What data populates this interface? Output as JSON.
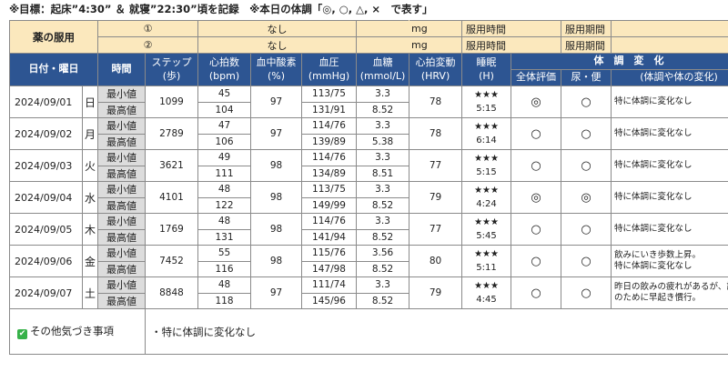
{
  "goal_text": "※目標：起床”4:30” ＆ 就寝”22:30”頃を記録　※本日の体調「◎, ○, △, ×　で表す」",
  "medication": {
    "label": "薬の服用",
    "rows": [
      {
        "num": "①",
        "name": "なし",
        "unit": "mg",
        "time_label": "服用時間",
        "period_label": "服用期間"
      },
      {
        "num": "②",
        "name": "なし",
        "unit": "mg",
        "time_label": "服用時間",
        "period_label": "服用期間"
      }
    ]
  },
  "headers": {
    "date": "日付・曜日",
    "time": "時間",
    "steps": [
      "ステップ",
      "(歩)"
    ],
    "heart": [
      "心拍数",
      "(bpm)"
    ],
    "oxygen": [
      "血中酸素",
      "(%)"
    ],
    "bp": [
      "血圧",
      "(mmHg)"
    ],
    "sugar": [
      "血糖",
      "(mmol/L)"
    ],
    "hrv": [
      "心拍変動",
      "(HRV)"
    ],
    "sleep": [
      "睡眠",
      "(H)"
    ],
    "condition_group": "体　調　変　化",
    "overall": "全体評価",
    "urine": "尿・便",
    "change": "(体調や体の変化)"
  },
  "row_labels": {
    "min": "最小値",
    "max": "最高値"
  },
  "days": [
    {
      "date": "2024/09/01",
      "dow": "日",
      "steps": "1099",
      "hr_min": "45",
      "hr_max": "104",
      "oxygen": "97",
      "bp_min": "113/75",
      "bp_max": "131/91",
      "sugar_min": "3.3",
      "sugar_max": "8.52",
      "hrv": "78",
      "stars": "★★★",
      "sleep": "5:15",
      "overall": "◎",
      "urine": "○",
      "note": "特に体調に変化なし"
    },
    {
      "date": "2024/09/02",
      "dow": "月",
      "steps": "2789",
      "hr_min": "47",
      "hr_max": "106",
      "oxygen": "97",
      "bp_min": "114/76",
      "bp_max": "139/89",
      "sugar_min": "3.3",
      "sugar_max": "5.38",
      "hrv": "78",
      "stars": "★★★",
      "sleep": "6:14",
      "overall": "○",
      "urine": "○",
      "note": "特に体調に変化なし"
    },
    {
      "date": "2024/09/03",
      "dow": "火",
      "steps": "3621",
      "hr_min": "49",
      "hr_max": "111",
      "oxygen": "98",
      "bp_min": "114/76",
      "bp_max": "134/89",
      "sugar_min": "3.3",
      "sugar_max": "8.51",
      "hrv": "77",
      "stars": "★★★",
      "sleep": "5:15",
      "overall": "○",
      "urine": "○",
      "note": "特に体調に変化なし"
    },
    {
      "date": "2024/09/04",
      "dow": "水",
      "steps": "4101",
      "hr_min": "48",
      "hr_max": "122",
      "oxygen": "98",
      "bp_min": "113/75",
      "bp_max": "149/99",
      "sugar_min": "3.3",
      "sugar_max": "8.52",
      "hrv": "79",
      "stars": "★★★",
      "sleep": "4:24",
      "overall": "◎",
      "urine": "◎",
      "note": "特に体調に変化なし"
    },
    {
      "date": "2024/09/05",
      "dow": "木",
      "steps": "1769",
      "hr_min": "48",
      "hr_max": "131",
      "oxygen": "98",
      "bp_min": "114/76",
      "bp_max": "141/94",
      "sugar_min": "3.3",
      "sugar_max": "8.52",
      "hrv": "77",
      "stars": "★★★",
      "sleep": "5:45",
      "overall": "○",
      "urine": "○",
      "note": "特に体調に変化なし"
    },
    {
      "date": "2024/09/06",
      "dow": "金",
      "steps": "7452",
      "hr_min": "55",
      "hr_max": "116",
      "oxygen": "98",
      "bp_min": "115/76",
      "bp_max": "147/98",
      "sugar_min": "3.56",
      "sugar_max": "8.52",
      "hrv": "80",
      "stars": "★★★",
      "sleep": "5:11",
      "overall": "○",
      "urine": "○",
      "note": "飲みにいき歩数上昇。\n特に体調に変化なし"
    },
    {
      "date": "2024/09/07",
      "dow": "土",
      "steps": "8848",
      "hr_min": "48",
      "hr_max": "118",
      "oxygen": "97",
      "bp_min": "111/74",
      "bp_max": "145/96",
      "sugar_min": "3.3",
      "sugar_max": "8.52",
      "hrv": "79",
      "stars": "★★★",
      "sleep": "4:45",
      "overall": "○",
      "urine": "○",
      "note": "昨日の飲みの疲れがあるが、試験のために早起き慣行。"
    }
  ],
  "footer": {
    "label": "その他気づき事項",
    "check_icon": "✔",
    "check_color": "#37b249",
    "note": "・特に体調に変化なし"
  },
  "colors": {
    "header_bg": "#2d5592",
    "med_bg": "#fbe8bd",
    "label_bg": "#dcdcdc"
  }
}
